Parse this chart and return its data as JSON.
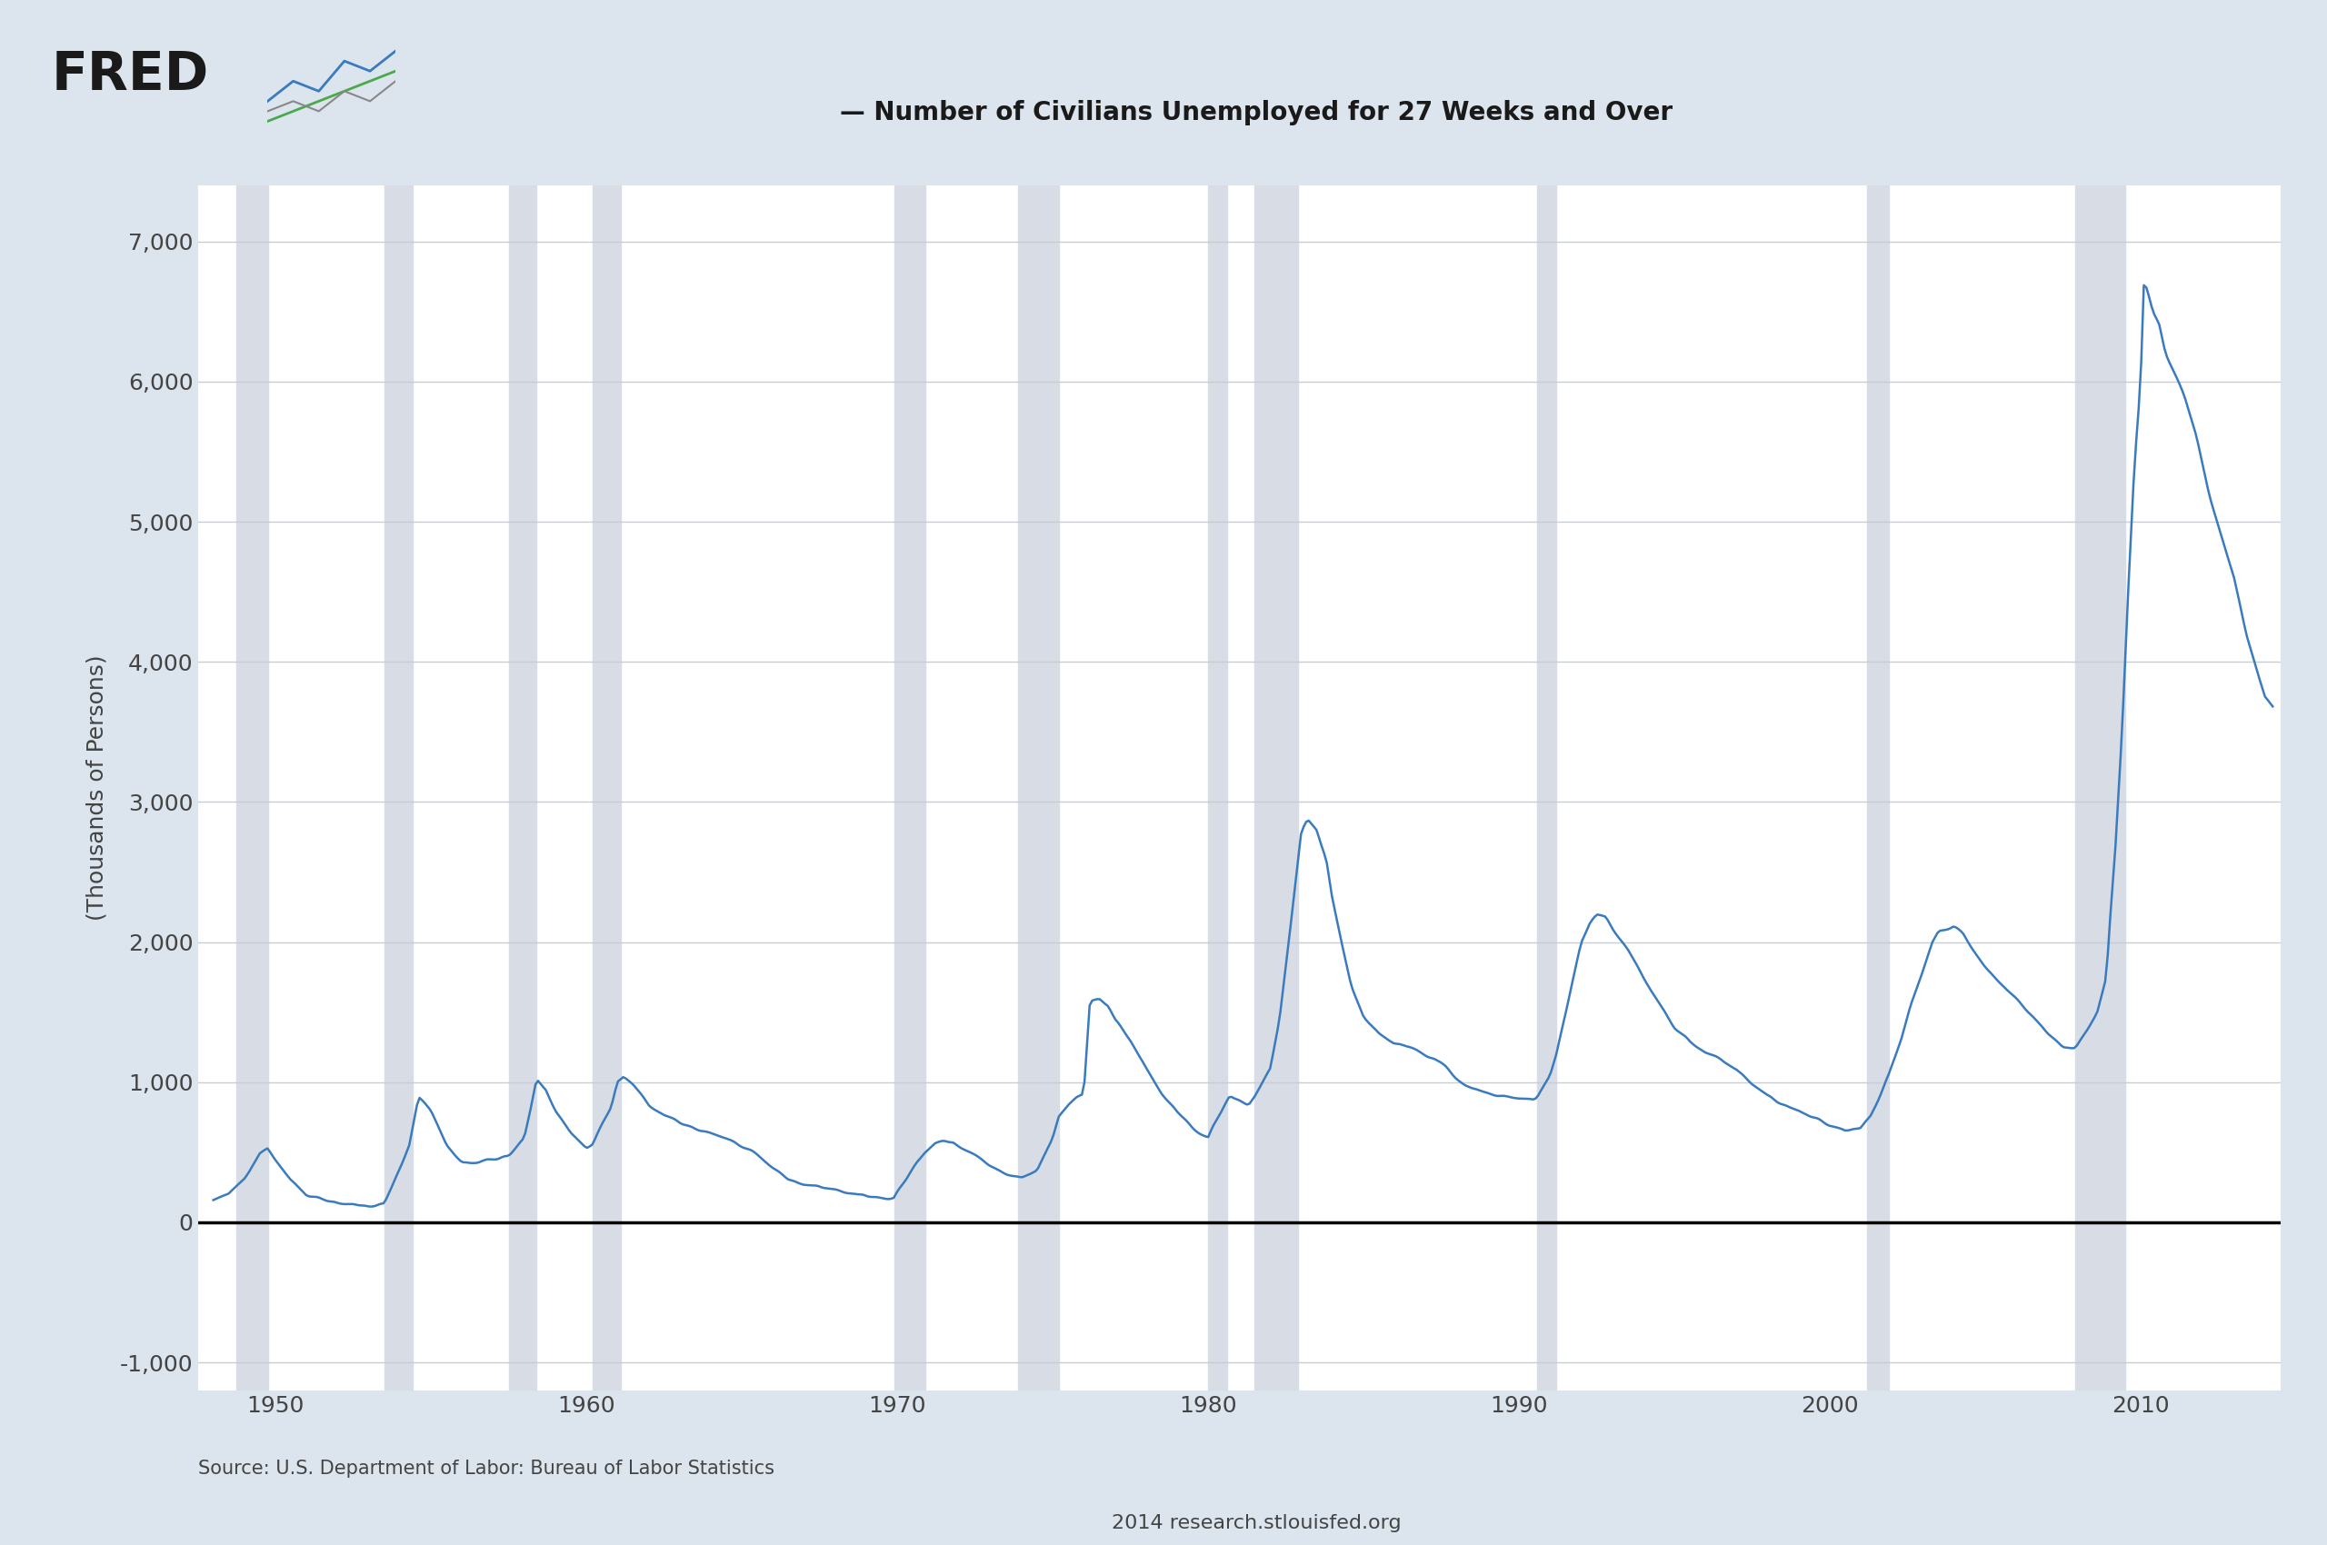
{
  "title": "— Number of Civilians Unemployed for 27 Weeks and Over",
  "ylabel": "(Thousands of Persons)",
  "source_line1": "Source: U.S. Department of Labor: Bureau of Labor Statistics",
  "source_line2": "2014 research.stlouisfed.org",
  "fred_label": "FRED",
  "line_color": "#3a7bbf",
  "background_color": "#dce4ed",
  "plot_bg_color": "#ffffff",
  "grid_color": "#c8cdd4",
  "recession_color": "#d8dde5",
  "zero_line_color": "#000000",
  "ylim": [
    -1200,
    7400
  ],
  "xlim": [
    1947.5,
    2014.5
  ],
  "yticks": [
    -1000,
    0,
    1000,
    2000,
    3000,
    4000,
    5000,
    6000,
    7000
  ],
  "ytick_labels": [
    "-1,000",
    "0",
    "1,000",
    "2,000",
    "3,000",
    "4,000",
    "5,000",
    "6,000",
    "7,000"
  ],
  "xtick_years": [
    1950,
    1960,
    1970,
    1980,
    1990,
    2000,
    2010
  ],
  "recession_bands": [
    [
      1948.75,
      1949.75
    ],
    [
      1953.5,
      1954.4
    ],
    [
      1957.5,
      1958.4
    ],
    [
      1960.2,
      1961.1
    ],
    [
      1969.9,
      1970.9
    ],
    [
      1973.9,
      1975.2
    ],
    [
      1980.0,
      1980.6
    ],
    [
      1981.5,
      1982.9
    ],
    [
      1990.6,
      1991.2
    ],
    [
      2001.2,
      2001.9
    ],
    [
      2007.9,
      2009.5
    ]
  ]
}
